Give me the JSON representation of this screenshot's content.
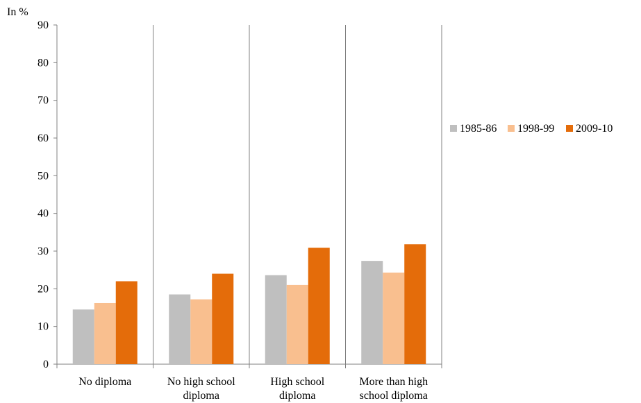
{
  "chart_data": {
    "type": "bar",
    "ylabel": "In %",
    "ylim": [
      0,
      90
    ],
    "yticks": [
      0,
      10,
      20,
      30,
      40,
      50,
      60,
      70,
      80,
      90
    ],
    "categories": [
      [
        "No diploma"
      ],
      [
        "No high school",
        "diploma"
      ],
      [
        "High school",
        "diploma"
      ],
      [
        "More than high",
        "school diploma"
      ]
    ],
    "series": [
      {
        "name": "1985-86",
        "color": "#bfbfbf",
        "values": [
          14.5,
          18.5,
          23.6,
          27.4
        ]
      },
      {
        "name": "1998-99",
        "color": "#f9bf8f",
        "values": [
          16.2,
          17.2,
          21.0,
          24.3
        ]
      },
      {
        "name": "2009-10",
        "color": "#e46c0a",
        "values": [
          22.0,
          24.0,
          30.9,
          31.8
        ]
      }
    ],
    "grid": false,
    "category_separators": true,
    "legend_position": "right"
  }
}
